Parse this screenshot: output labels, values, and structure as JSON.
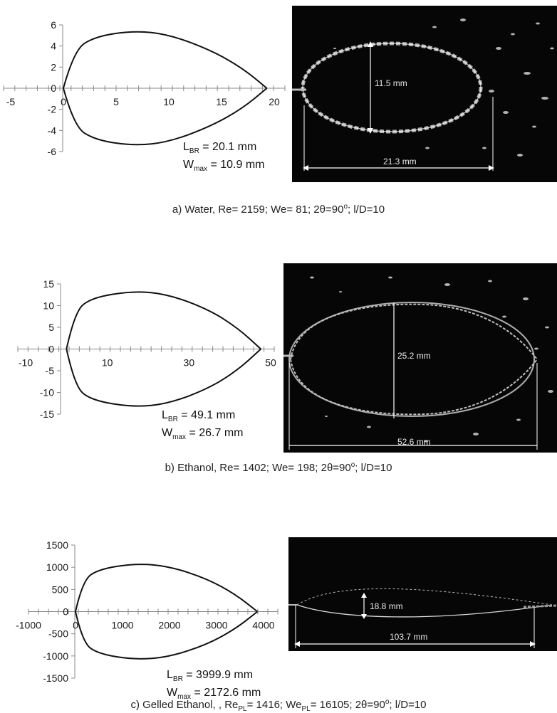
{
  "panels": [
    {
      "caption": {
        "prefix": "a)  Water, Re= 2159; We= 81; 2θ=90",
        "deg": "o",
        "suffix": "; l/D=10"
      },
      "lbr": {
        "sub": "BR",
        "text": " = 20.1 mm"
      },
      "wmax": {
        "sub": "max",
        "text": " = 10.9 mm"
      },
      "photo_dims": {
        "height": "11.5 mm",
        "length": "21.3 mm"
      }
    },
    {
      "caption": {
        "prefix": "b)  Ethanol, Re= 1402; We= 198; 2θ=90",
        "deg": "o",
        "suffix": "; l/D=10"
      },
      "lbr": {
        "sub": "BR",
        "text": " = 49.1 mm"
      },
      "wmax": {
        "sub": "max",
        "text": " = 26.7 mm"
      },
      "photo_dims": {
        "height": "25.2 mm",
        "length": "52.6 mm"
      }
    },
    {
      "caption": {
        "prefix": "c)  Gelled Ethanol, , Re",
        "re_sub": "PL",
        "mid": "= 1416; We",
        "we_sub": "PL",
        "tail": "= 16105; 2θ=90",
        "deg": "o",
        "suffix": "; l/D=10"
      },
      "lbr": {
        "sub": "BR",
        "text": " = 3999.9 mm"
      },
      "wmax": {
        "sub": "max",
        "text": " = 2172.6 mm"
      },
      "photo_dims": {
        "height": "18.8 mm",
        "length": "103.7 mm"
      }
    }
  ],
  "chart_data": [
    {
      "type": "line",
      "xlim": [
        -5,
        20
      ],
      "ylim": [
        -6,
        6
      ],
      "x_ticks": [
        "-5",
        "0",
        "5",
        "10",
        "15",
        "20"
      ],
      "y_ticks": [
        "6",
        "4",
        "2",
        "0",
        "-2",
        "-4",
        "-6"
      ],
      "sheet_length": 19.3,
      "sheet_half_width": 5.45,
      "max_width_x": 6.7,
      "series": [
        {
          "x": [
            0,
            1,
            3,
            6.7,
            10,
            14,
            17,
            19.3
          ],
          "y_upper": [
            0,
            3.6,
            4.9,
            5.45,
            5.1,
            3.6,
            1.9,
            0
          ]
        }
      ]
    },
    {
      "type": "line",
      "xlim": [
        -10,
        50
      ],
      "ylim": [
        -15,
        15
      ],
      "x_ticks": [
        "-10",
        "10",
        "30",
        "50"
      ],
      "y_ticks": [
        "15",
        "10",
        "5",
        "0",
        "-5",
        "-10",
        "-15"
      ],
      "sheet_length": 47.6,
      "sheet_half_width": 13.4,
      "max_width_x": 16.5,
      "series": [
        {
          "x": [
            0,
            2,
            6,
            16.5,
            25,
            35,
            42,
            47.6
          ],
          "y_upper": [
            0,
            8.5,
            11.8,
            13.4,
            12.6,
            9.0,
            4.8,
            0
          ]
        }
      ]
    },
    {
      "type": "line",
      "xlim": [
        -1000,
        4000
      ],
      "ylim": [
        -1500,
        1500
      ],
      "x_ticks": [
        "-1000",
        "0",
        "1000",
        "2000",
        "3000",
        "4000"
      ],
      "y_ticks": [
        "1500",
        "1000",
        "500",
        "0",
        "-500",
        "-1000",
        "-1500"
      ],
      "sheet_length": 3870,
      "sheet_half_width": 1086,
      "max_width_x": 1300,
      "series": [
        {
          "x": [
            0,
            150,
            500,
            1300,
            2000,
            2800,
            3400,
            3870
          ],
          "y_upper": [
            0,
            700,
            960,
            1086,
            1020,
            740,
            390,
            0
          ]
        }
      ]
    }
  ]
}
